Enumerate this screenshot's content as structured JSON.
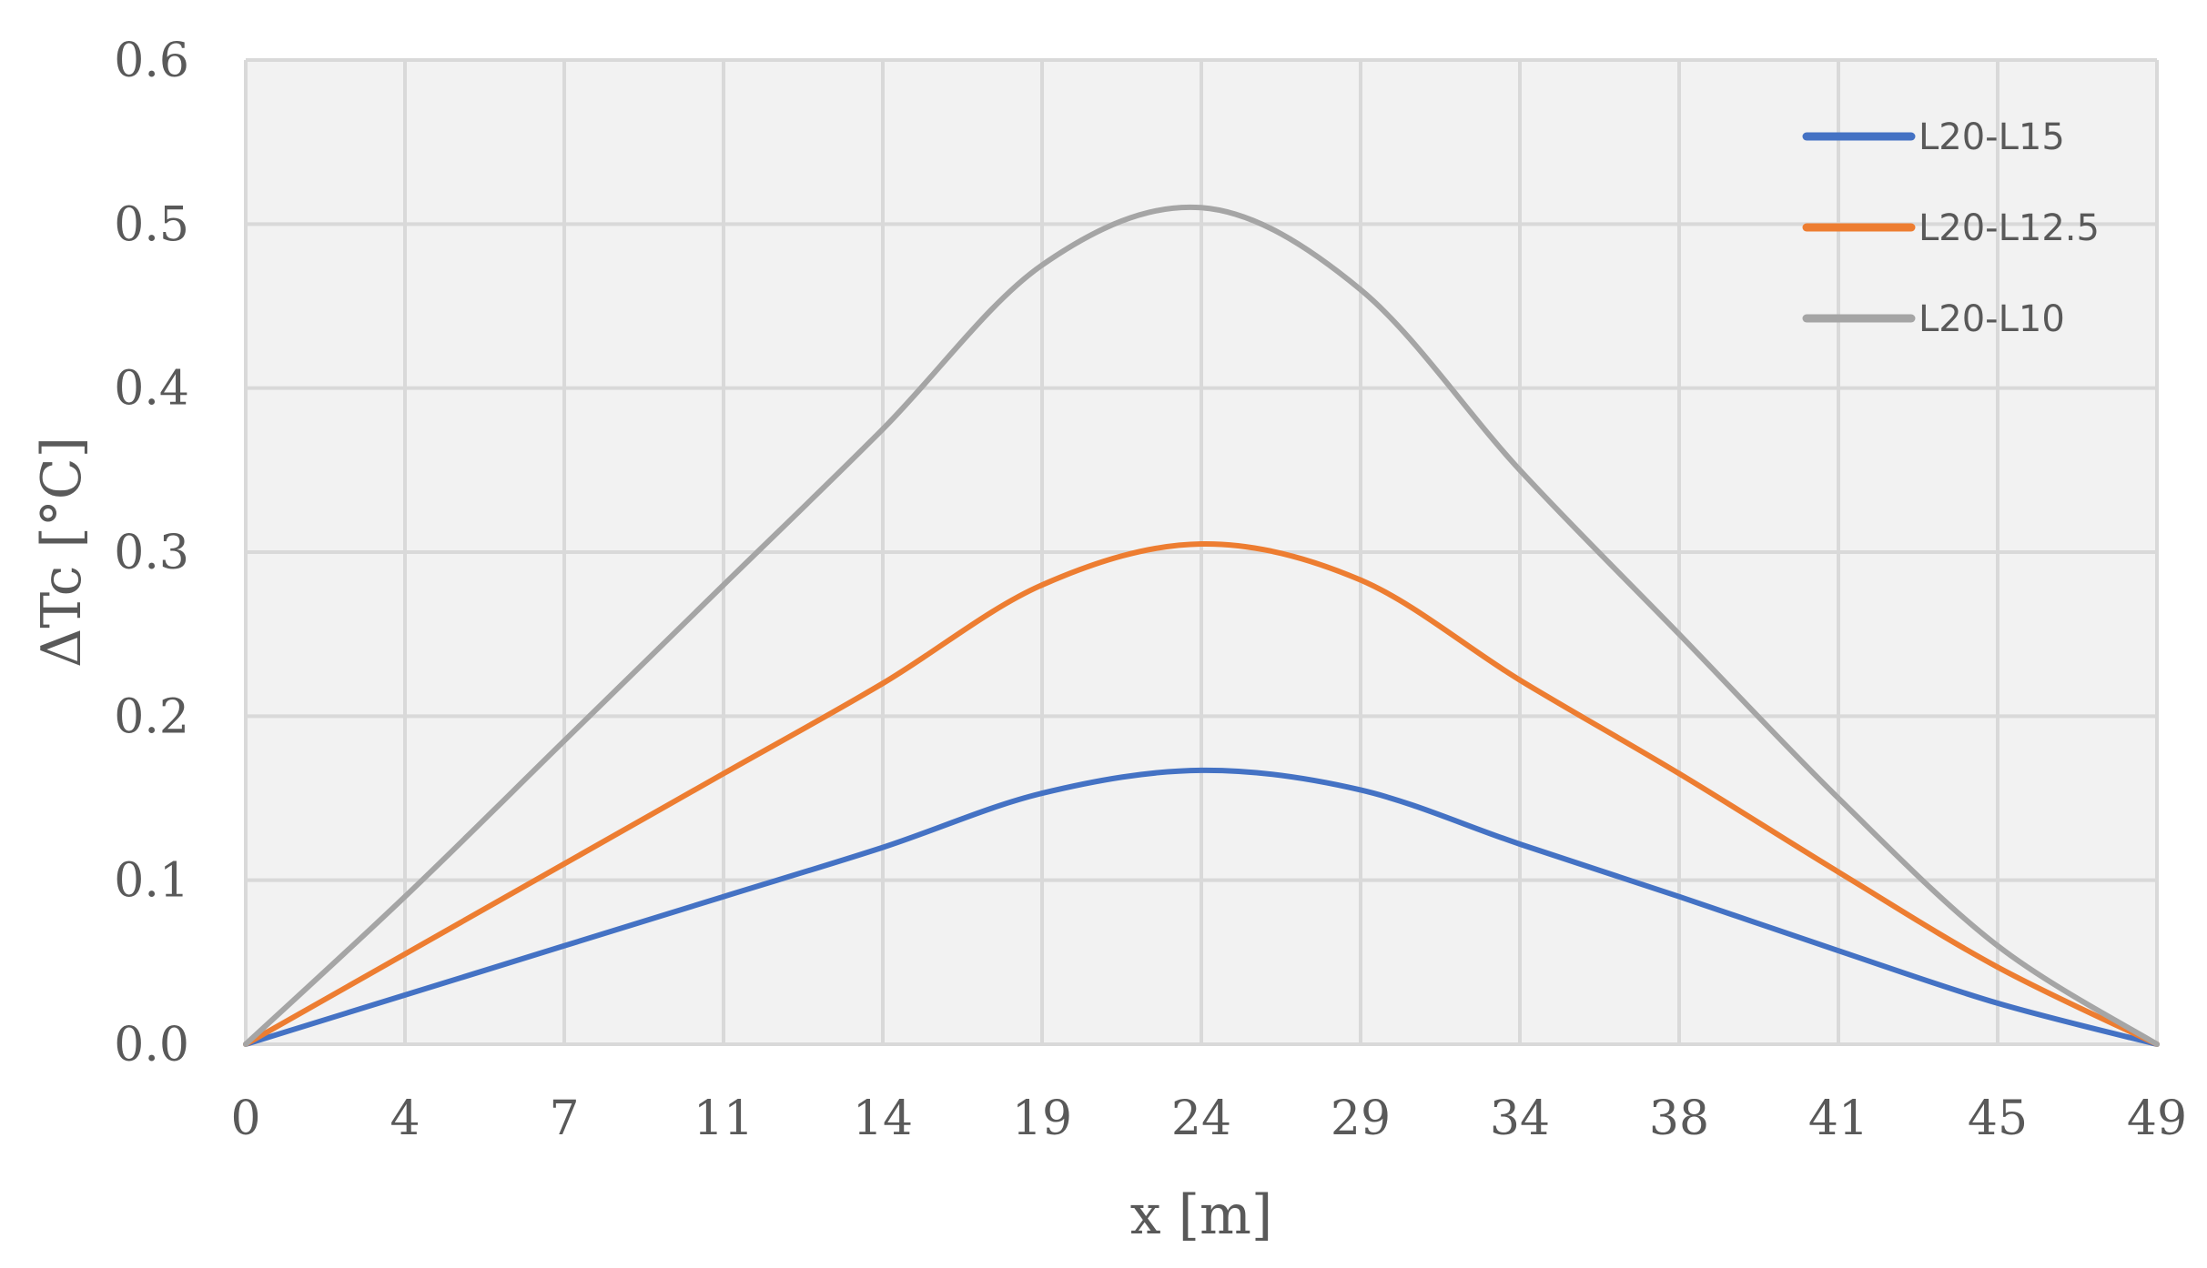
{
  "chart_data": {
    "type": "line",
    "title": "",
    "xlabel": "x [m]",
    "ylabel": "ΔTc [°C]",
    "categories": [
      "0",
      "4",
      "7",
      "11",
      "14",
      "19",
      "24",
      "29",
      "34",
      "38",
      "41",
      "45",
      "49"
    ],
    "ylim": [
      0,
      0.6
    ],
    "yticks": [
      "0.0",
      "0.1",
      "0.2",
      "0.3",
      "0.4",
      "0.5",
      "0.6"
    ],
    "grid": true,
    "legend_position": "top-right",
    "series": [
      {
        "name": "L20-L15",
        "color": "#4472c4",
        "values": [
          0.0,
          0.03,
          0.06,
          0.09,
          0.12,
          0.153,
          0.167,
          0.155,
          0.122,
          0.09,
          0.057,
          0.025,
          0.0
        ]
      },
      {
        "name": "L20-L12.5",
        "color": "#ed7d31",
        "values": [
          0.0,
          0.055,
          0.11,
          0.165,
          0.22,
          0.28,
          0.305,
          0.283,
          0.222,
          0.165,
          0.105,
          0.047,
          0.0
        ]
      },
      {
        "name": "L20-L10",
        "color": "#a5a5a5",
        "values": [
          0.0,
          0.09,
          0.185,
          0.28,
          0.375,
          0.475,
          0.51,
          0.46,
          0.35,
          0.25,
          0.15,
          0.06,
          0.0
        ]
      }
    ]
  }
}
